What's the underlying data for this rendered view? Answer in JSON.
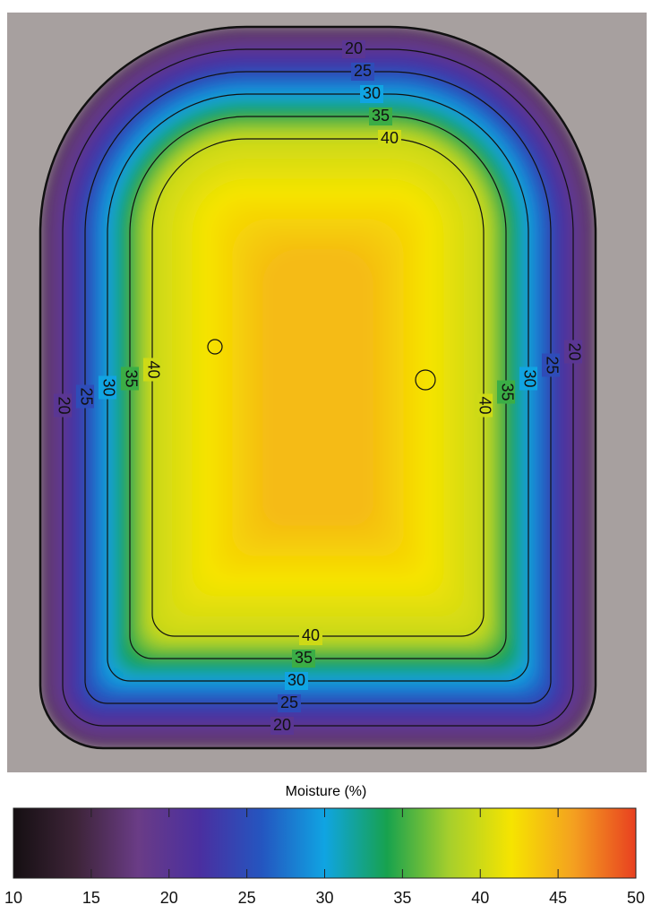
{
  "chart_data": {
    "type": "contour",
    "levels": [
      20,
      25,
      30,
      35,
      40
    ],
    "colorbar_label": "Moisture (%)",
    "clim": [
      10,
      50
    ],
    "cticks": [
      10,
      15,
      20,
      25,
      30,
      35,
      40,
      45,
      50
    ],
    "colors": [
      "#150f12",
      "#3d2438",
      "#6a3c86",
      "#4a2fa0",
      "#2456c0",
      "#10a4e2",
      "#17a24e",
      "#a6cf2c",
      "#f6e400",
      "#f4a020",
      "#e84020"
    ]
  }
}
